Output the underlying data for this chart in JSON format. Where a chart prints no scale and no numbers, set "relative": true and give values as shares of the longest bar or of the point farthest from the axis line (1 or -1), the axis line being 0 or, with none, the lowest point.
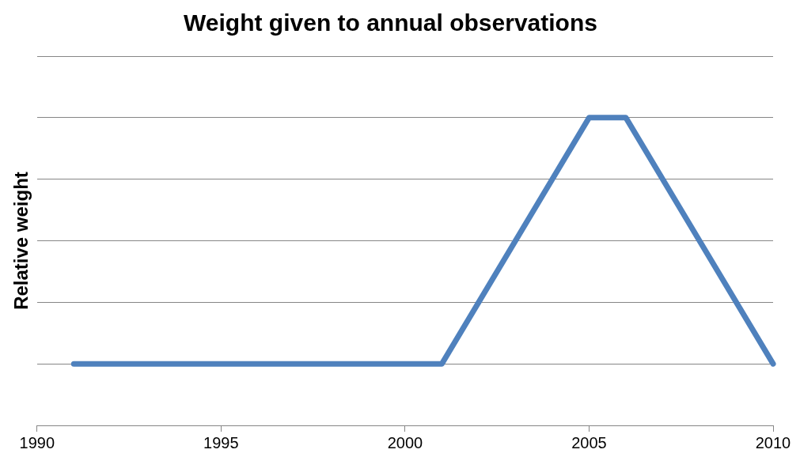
{
  "chart_data": {
    "type": "line",
    "title": "Weight given to annual observations",
    "ylabel": "Relative weight",
    "relative": true,
    "x": [
      1991,
      2001,
      2005,
      2006,
      2010
    ],
    "series": [
      {
        "color": "#4f81bd",
        "values": [
          0.2,
          0.2,
          1,
          1,
          0.2
        ]
      }
    ],
    "xlim": [
      1990,
      2010
    ],
    "xticks": [
      1990,
      1995,
      2000,
      2005,
      2010
    ],
    "grid": "y",
    "legend": false,
    "marker": "none",
    "line_style": "solid"
  }
}
